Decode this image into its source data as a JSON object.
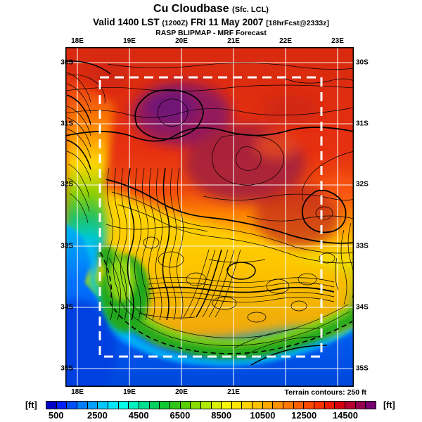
{
  "header": {
    "title": "Cu Cloudbase",
    "title_qualifier": "(Sfc. LCL)",
    "valid_prefix": "Valid 1400 LST",
    "valid_zulu": "(1200Z)",
    "valid_date": "FRI 11 May 2007",
    "valid_fcst": "[18hrFcst@2333z]",
    "model_line": "RASP BLIPMAP - MRF Forecast"
  },
  "map": {
    "top_labels": [
      "18E",
      "19E",
      "20E",
      "21E",
      "22E",
      "23E"
    ],
    "bottom_labels": [
      "18E",
      "19E",
      "20E",
      "21E"
    ],
    "left_labels": [
      "30S",
      "31S",
      "32S",
      "33S",
      "34S",
      "35S"
    ],
    "right_labels": [
      "30S",
      "31S",
      "32S",
      "33S",
      "34S",
      "35S"
    ],
    "terrain_note": "Terrain contours: 250 ft"
  },
  "colorbar": {
    "unit_left": "[ft]",
    "unit_right": "[ft]",
    "min": 0,
    "max": 16000,
    "step": 500,
    "tick_values": [
      500,
      2500,
      4500,
      6500,
      8500,
      10500,
      12500,
      14500
    ],
    "tick_labels": [
      "500",
      "2500",
      "4500",
      "6500",
      "8500",
      "10500",
      "12500",
      "14500"
    ],
    "colors": [
      "#0000c8",
      "#0020ff",
      "#0050ff",
      "#0080ff",
      "#00a0ff",
      "#00c8ff",
      "#00e8ff",
      "#00ffe8",
      "#00f0c0",
      "#00e090",
      "#00d060",
      "#10c830",
      "#30c818",
      "#58d000",
      "#88dc00",
      "#b0e800",
      "#d8f000",
      "#f8f800",
      "#ffe800",
      "#ffd400",
      "#ffc000",
      "#ffa800",
      "#ff9000",
      "#ff7800",
      "#ff6000",
      "#ff4800",
      "#ff3000",
      "#f01800",
      "#d80010",
      "#b80030",
      "#980050",
      "#780070"
    ]
  }
}
